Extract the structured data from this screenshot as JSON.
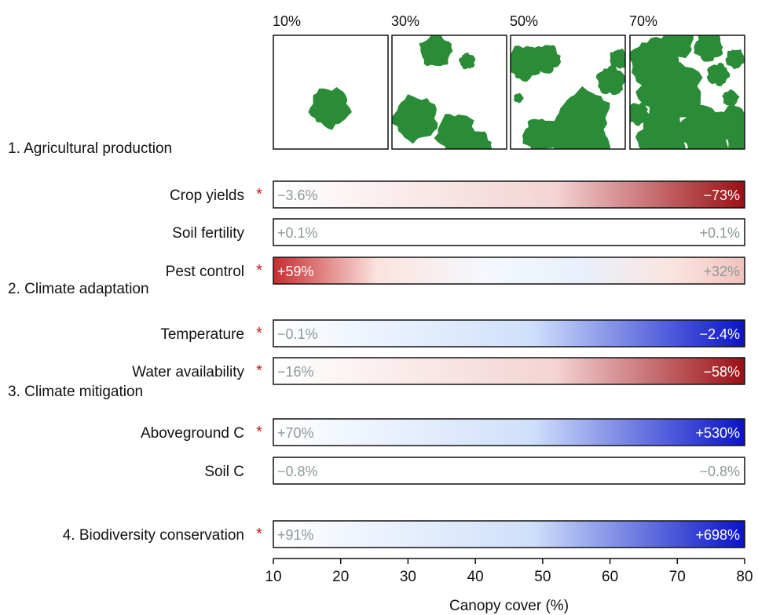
{
  "chart_data": {
    "type": "heatmap",
    "xlabel": "Canopy cover (%)",
    "xlim": [
      10,
      80
    ],
    "xticks": [
      10,
      20,
      30,
      40,
      50,
      60,
      70,
      80
    ],
    "colors": {
      "canopy": "#2a8c37",
      "negative": "#9b0f14",
      "positive": "#0a13c8",
      "neutral": "#ffffff",
      "label_light": "#8a9a98",
      "asterisk": "#c41a1a"
    },
    "canopy_panels": [
      {
        "label": "10%"
      },
      {
        "label": "30%"
      },
      {
        "label": "50%"
      },
      {
        "label": "70%"
      }
    ],
    "groups": [
      {
        "title": "1. Agricultural production",
        "rows": [
          {
            "name": "Crop yields",
            "significant": true,
            "start_label": "−3.6%",
            "end_label": "−73%",
            "start_value": -3.6,
            "end_value": -73,
            "direction": "negative"
          },
          {
            "name": "Soil fertility",
            "significant": false,
            "start_label": "+0.1%",
            "end_label": "+0.1%",
            "start_value": 0.1,
            "end_value": 0.1,
            "direction": "none"
          },
          {
            "name": "Pest control",
            "significant": true,
            "start_label": "+59%",
            "end_label": "+32%",
            "start_value": 59,
            "end_value": 32,
            "direction": "mixed"
          }
        ]
      },
      {
        "title": "2. Climate adaptation",
        "rows": [
          {
            "name": "Temperature",
            "significant": true,
            "start_label": "−0.1%",
            "end_label": "−2.4%",
            "start_value": -0.1,
            "end_value": -2.4,
            "direction": "positive"
          },
          {
            "name": "Water availability",
            "significant": true,
            "start_label": "−16%",
            "end_label": "−58%",
            "start_value": -16,
            "end_value": -58,
            "direction": "negative"
          }
        ]
      },
      {
        "title": "3. Climate mitigation",
        "rows": [
          {
            "name": "Aboveground C",
            "significant": true,
            "start_label": "+70%",
            "end_label": "+530%",
            "start_value": 70,
            "end_value": 530,
            "direction": "positive"
          },
          {
            "name": "Soil C",
            "significant": false,
            "start_label": "−0.8%",
            "end_label": "−0.8%",
            "start_value": -0.8,
            "end_value": -0.8,
            "direction": "none"
          }
        ]
      },
      {
        "title": "",
        "rows": [
          {
            "name": "4. Biodiversity conservation",
            "significant": true,
            "start_label": "+91%",
            "end_label": "+698%",
            "start_value": 91,
            "end_value": 698,
            "direction": "positive"
          }
        ]
      }
    ]
  }
}
